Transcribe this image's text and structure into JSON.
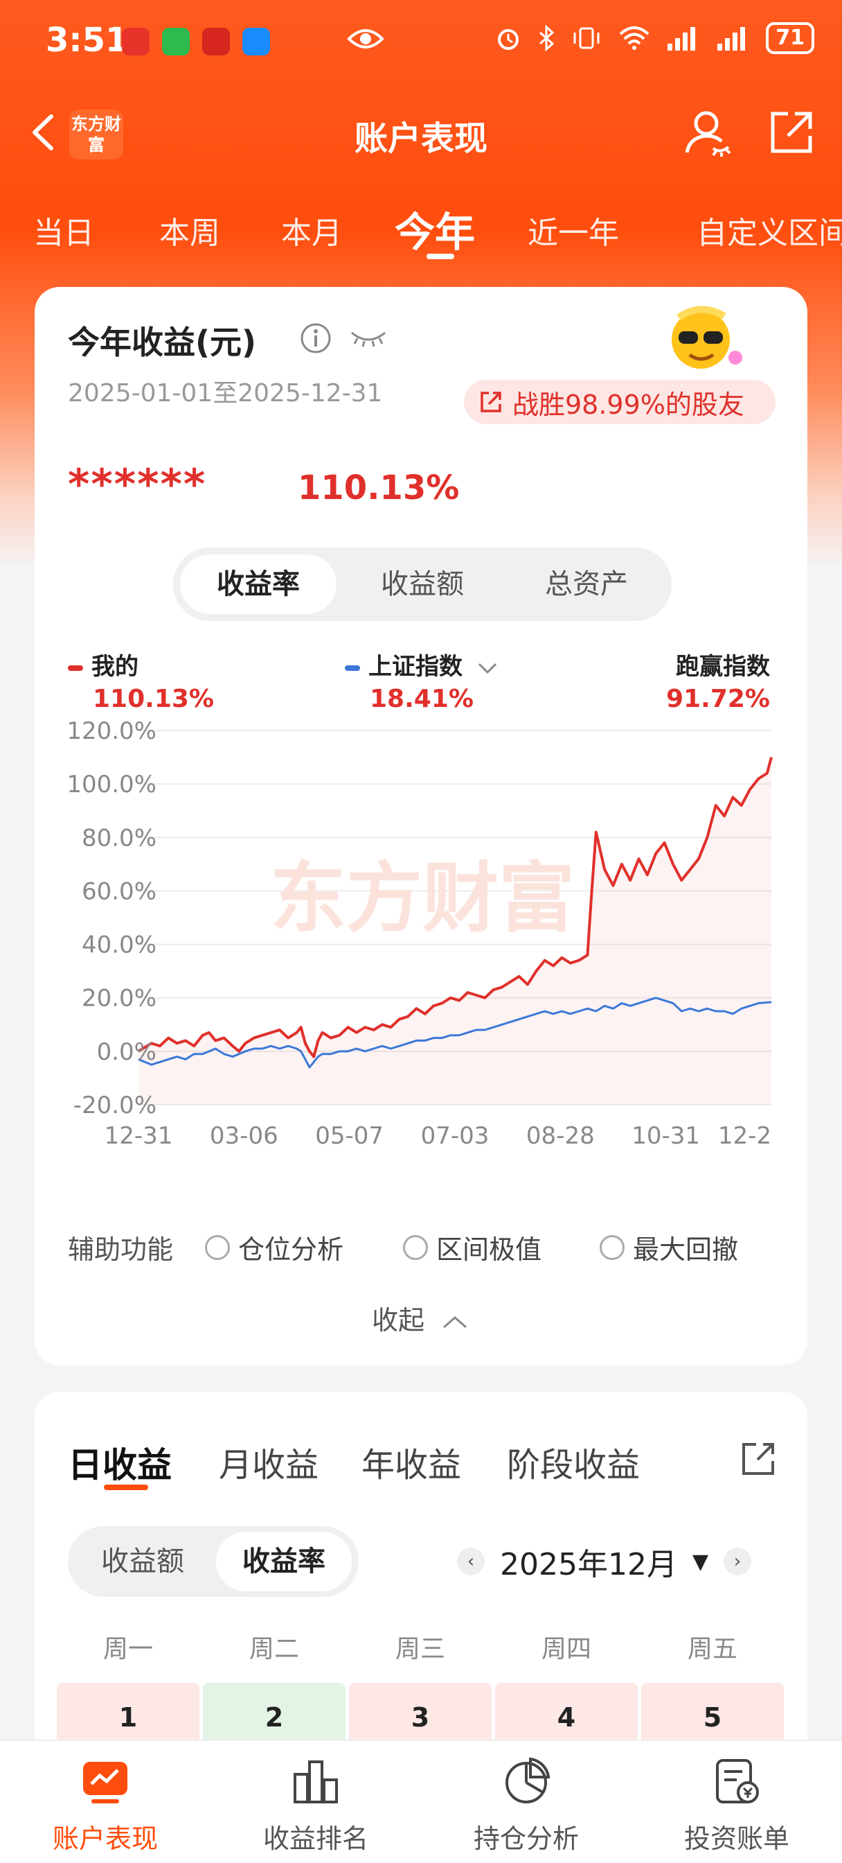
{
  "status_bar": {
    "time": "3:51",
    "battery": "71"
  },
  "nav": {
    "brand_logo": "东方财富",
    "title": "账户表现"
  },
  "period_tabs": [
    "当日",
    "本周",
    "本月",
    "今年",
    "近一年",
    "自定义区间"
  ],
  "period_active_index": 3,
  "summary": {
    "title": "今年收益(元)",
    "date_range": "2025-01-01至2025-12-31",
    "beat_text": "战胜98.99%的股友",
    "amount_masked": "******",
    "return_rate": "110.13%",
    "metric_tabs": [
      "收益率",
      "收益额",
      "总资产"
    ],
    "metric_active_index": 0
  },
  "legend": {
    "mine_label": "我的",
    "mine_value": "110.13%",
    "index_label": "上证指数",
    "index_value": "18.41%",
    "outperform_label": "跑赢指数",
    "outperform_value": "91.72%"
  },
  "chart_data": {
    "type": "line",
    "watermark": "东方财富",
    "y_ticks": [
      "120.0%",
      "100.0%",
      "80.0%",
      "60.0%",
      "40.0%",
      "20.0%",
      "0.0%",
      "-20.0%"
    ],
    "ylim": [
      -20,
      120
    ],
    "x_ticks": [
      "12-31",
      "03-06",
      "05-07",
      "07-03",
      "08-28",
      "10-31",
      "12-2"
    ],
    "colors": {
      "mine": "#e0302b",
      "index": "#3b78d8"
    },
    "series": [
      {
        "name": "我的",
        "color": "#e0302b",
        "points": [
          [
            0,
            0
          ],
          [
            6,
            3
          ],
          [
            10,
            2
          ],
          [
            14,
            5
          ],
          [
            18,
            3
          ],
          [
            22,
            4
          ],
          [
            26,
            2
          ],
          [
            30,
            6
          ],
          [
            33,
            7
          ],
          [
            36,
            4
          ],
          [
            40,
            5
          ],
          [
            44,
            2
          ],
          [
            47,
            0
          ],
          [
            50,
            3
          ],
          [
            54,
            5
          ],
          [
            58,
            6
          ],
          [
            62,
            7
          ],
          [
            66,
            8
          ],
          [
            70,
            5
          ],
          [
            74,
            7
          ],
          [
            76,
            9
          ],
          [
            78,
            3
          ],
          [
            80,
            0
          ],
          [
            82,
            -2
          ],
          [
            84,
            4
          ],
          [
            86,
            7
          ],
          [
            90,
            5
          ],
          [
            94,
            6
          ],
          [
            98,
            9
          ],
          [
            102,
            7
          ],
          [
            106,
            9
          ],
          [
            110,
            8
          ],
          [
            114,
            10
          ],
          [
            118,
            9
          ],
          [
            122,
            12
          ],
          [
            126,
            13
          ],
          [
            130,
            16
          ],
          [
            134,
            14
          ],
          [
            138,
            17
          ],
          [
            142,
            18
          ],
          [
            146,
            20
          ],
          [
            150,
            19
          ],
          [
            154,
            22
          ],
          [
            158,
            21
          ],
          [
            162,
            20
          ],
          [
            166,
            23
          ],
          [
            170,
            24
          ],
          [
            174,
            26
          ],
          [
            178,
            28
          ],
          [
            182,
            25
          ],
          [
            186,
            30
          ],
          [
            190,
            34
          ],
          [
            194,
            32
          ],
          [
            198,
            35
          ],
          [
            202,
            33
          ],
          [
            206,
            34
          ],
          [
            210,
            36
          ],
          [
            212,
            60
          ],
          [
            214,
            82
          ],
          [
            216,
            75
          ],
          [
            218,
            68
          ],
          [
            222,
            62
          ],
          [
            226,
            70
          ],
          [
            230,
            64
          ],
          [
            234,
            72
          ],
          [
            238,
            66
          ],
          [
            242,
            74
          ],
          [
            246,
            78
          ],
          [
            250,
            70
          ],
          [
            254,
            64
          ],
          [
            258,
            68
          ],
          [
            262,
            72
          ],
          [
            266,
            80
          ],
          [
            270,
            92
          ],
          [
            274,
            88
          ],
          [
            278,
            95
          ],
          [
            282,
            92
          ],
          [
            286,
            98
          ],
          [
            290,
            102
          ],
          [
            294,
            104
          ],
          [
            296,
            110
          ]
        ]
      },
      {
        "name": "上证指数",
        "color": "#3b78d8",
        "points": [
          [
            0,
            -3
          ],
          [
            6,
            -5
          ],
          [
            10,
            -4
          ],
          [
            14,
            -3
          ],
          [
            18,
            -2
          ],
          [
            22,
            -3
          ],
          [
            26,
            -1
          ],
          [
            30,
            -1
          ],
          [
            33,
            0
          ],
          [
            36,
            1
          ],
          [
            40,
            -1
          ],
          [
            44,
            -2
          ],
          [
            47,
            -1
          ],
          [
            50,
            0
          ],
          [
            54,
            1
          ],
          [
            58,
            1
          ],
          [
            62,
            2
          ],
          [
            66,
            1
          ],
          [
            70,
            2
          ],
          [
            74,
            1
          ],
          [
            76,
            0
          ],
          [
            78,
            -3
          ],
          [
            80,
            -6
          ],
          [
            82,
            -4
          ],
          [
            84,
            -2
          ],
          [
            86,
            -1
          ],
          [
            90,
            -1
          ],
          [
            94,
            0
          ],
          [
            98,
            0
          ],
          [
            102,
            1
          ],
          [
            106,
            0
          ],
          [
            110,
            1
          ],
          [
            114,
            2
          ],
          [
            118,
            1
          ],
          [
            122,
            2
          ],
          [
            126,
            3
          ],
          [
            130,
            4
          ],
          [
            134,
            4
          ],
          [
            138,
            5
          ],
          [
            142,
            5
          ],
          [
            146,
            6
          ],
          [
            150,
            6
          ],
          [
            154,
            7
          ],
          [
            158,
            8
          ],
          [
            162,
            8
          ],
          [
            166,
            9
          ],
          [
            170,
            10
          ],
          [
            174,
            11
          ],
          [
            178,
            12
          ],
          [
            182,
            13
          ],
          [
            186,
            14
          ],
          [
            190,
            15
          ],
          [
            194,
            14
          ],
          [
            198,
            15
          ],
          [
            202,
            14
          ],
          [
            206,
            15
          ],
          [
            210,
            16
          ],
          [
            214,
            15
          ],
          [
            218,
            17
          ],
          [
            222,
            16
          ],
          [
            226,
            18
          ],
          [
            230,
            17
          ],
          [
            234,
            18
          ],
          [
            238,
            19
          ],
          [
            242,
            20
          ],
          [
            246,
            19
          ],
          [
            250,
            18
          ],
          [
            254,
            15
          ],
          [
            258,
            16
          ],
          [
            262,
            15
          ],
          [
            266,
            16
          ],
          [
            270,
            15
          ],
          [
            274,
            15
          ],
          [
            278,
            14
          ],
          [
            282,
            16
          ],
          [
            286,
            17
          ],
          [
            290,
            18
          ],
          [
            296,
            18.4
          ]
        ]
      }
    ]
  },
  "aux": {
    "label": "辅助功能",
    "options": [
      "仓位分析",
      "区间极值",
      "最大回撤"
    ],
    "collapse": "收起"
  },
  "profit_tabs": [
    "日收益",
    "月收益",
    "年收益",
    "阶段收益"
  ],
  "profit_active_index": 0,
  "profit_metric_tabs": [
    "收益额",
    "收益率"
  ],
  "profit_metric_active_index": 1,
  "month": "2025年12月",
  "weekdays": [
    "周一",
    "周二",
    "周三",
    "周四",
    "周五"
  ],
  "days": [
    {
      "day": "1",
      "color": "#fde8e6"
    },
    {
      "day": "2",
      "color": "#e3f3e6"
    },
    {
      "day": "3",
      "color": "#fde8e6"
    },
    {
      "day": "4",
      "color": "#fde8e6"
    },
    {
      "day": "5",
      "color": "#fde8e6"
    }
  ],
  "bottom_nav": [
    "账户表现",
    "收益排名",
    "持仓分析",
    "投资账单"
  ],
  "bottom_active_index": 0
}
